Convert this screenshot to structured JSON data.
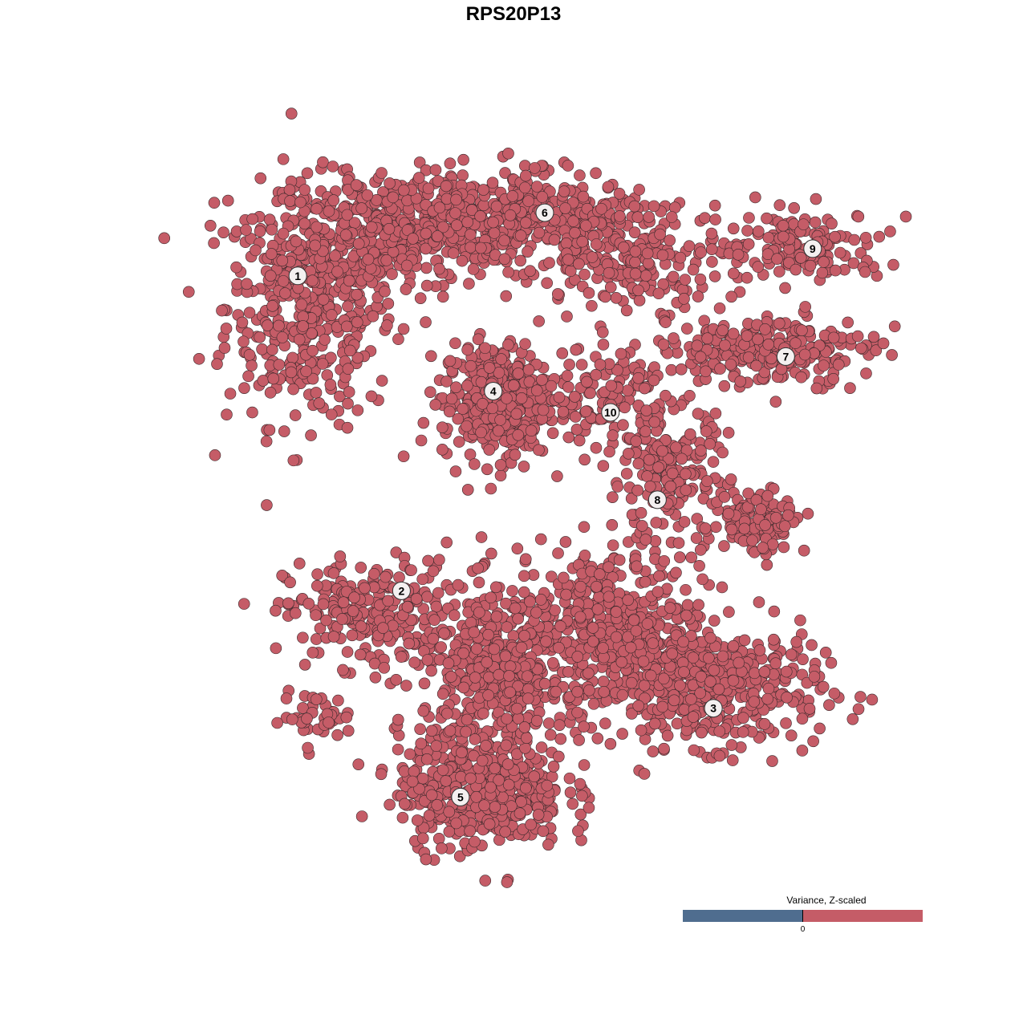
{
  "chart_data": {
    "type": "scatter",
    "title": "RPS20P13",
    "xlabel": "",
    "ylabel": "",
    "xlim": [
      -50,
      50
    ],
    "ylim": [
      -50,
      50
    ],
    "grid": false,
    "axes_visible": false,
    "point_color": "#c55c67",
    "point_stroke": "#3b2a2c",
    "clusters": [
      {
        "label": "1",
        "label_pos": [
          -31.6,
          32.1
        ],
        "blobs": [
          {
            "center": [
              -30,
              28
            ],
            "spread": [
              7,
              10
            ],
            "n": 450
          },
          {
            "center": [
              -20,
              38
            ],
            "spread": [
              10,
              5
            ],
            "n": 300
          }
        ]
      },
      {
        "label": "2",
        "label_pos": [
          -17.7,
          -10.8
        ],
        "blobs": [
          {
            "center": [
              -22,
              -14
            ],
            "spread": [
              7,
              4.5
            ],
            "n": 250
          },
          {
            "center": [
              -29,
              -28
            ],
            "spread": [
              3,
              2
            ],
            "n": 40
          }
        ]
      },
      {
        "label": "3",
        "label_pos": [
          24.1,
          -26.8
        ],
        "blobs": [
          {
            "center": [
              24,
              -24
            ],
            "spread": [
              9,
              5
            ],
            "n": 450
          },
          {
            "center": [
              10,
              -16
            ],
            "spread": [
              8,
              7
            ],
            "n": 450
          }
        ]
      },
      {
        "label": "4",
        "label_pos": [
          -5.4,
          16.4
        ],
        "blobs": [
          {
            "center": [
              -5,
              15
            ],
            "spread": [
              4.5,
              5
            ],
            "n": 380
          }
        ]
      },
      {
        "label": "5",
        "label_pos": [
          -9.8,
          -38.9
        ],
        "blobs": [
          {
            "center": [
              -7,
              -38
            ],
            "spread": [
              7,
              5
            ],
            "n": 450
          },
          {
            "center": [
              -5,
              -22
            ],
            "spread": [
              6,
              7
            ],
            "n": 400
          }
        ]
      },
      {
        "label": "6",
        "label_pos": [
          1.5,
          40.7
        ],
        "blobs": [
          {
            "center": [
              -5,
              40
            ],
            "spread": [
              11,
              4
            ],
            "n": 450
          },
          {
            "center": [
              13,
              35
            ],
            "spread": [
              8,
              4.5
            ],
            "n": 220
          }
        ]
      },
      {
        "label": "7",
        "label_pos": [
          33.8,
          21.1
        ],
        "blobs": [
          {
            "center": [
              31,
              22
            ],
            "spread": [
              9,
              3
            ],
            "n": 250
          }
        ]
      },
      {
        "label": "8",
        "label_pos": [
          16.6,
          1.6
        ],
        "blobs": [
          {
            "center": [
              18,
              5
            ],
            "spread": [
              5,
              6
            ],
            "n": 200
          },
          {
            "center": [
              30,
              -1
            ],
            "spread": [
              4,
              3
            ],
            "n": 110
          }
        ]
      },
      {
        "label": "9",
        "label_pos": [
          37.4,
          35.8
        ],
        "blobs": [
          {
            "center": [
              36,
              36
            ],
            "spread": [
              7,
              3
            ],
            "n": 150
          }
        ]
      },
      {
        "label": "10",
        "label_pos": [
          10.3,
          13.5
        ],
        "blobs": [
          {
            "center": [
              10,
              16
            ],
            "spread": [
              5,
              4
            ],
            "n": 120
          }
        ]
      }
    ],
    "legend": {
      "title": "Variance, Z-scaled",
      "tick": "0",
      "low_color": "#4f6d8f",
      "high_color": "#c55c67",
      "placement": "bottom-right"
    }
  }
}
